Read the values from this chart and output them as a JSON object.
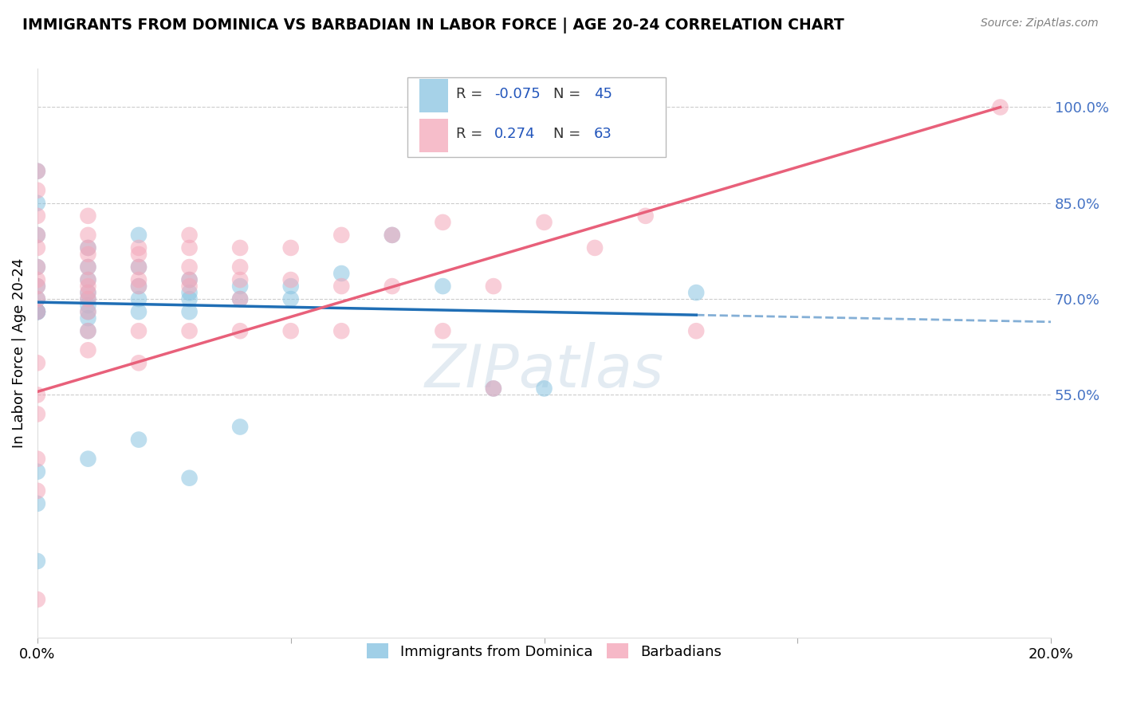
{
  "title": "IMMIGRANTS FROM DOMINICA VS BARBADIAN IN LABOR FORCE | AGE 20-24 CORRELATION CHART",
  "source": "Source: ZipAtlas.com",
  "ylabel": "In Labor Force | Age 20-24",
  "xlim": [
    0.0,
    0.2
  ],
  "ylim": [
    0.17,
    1.06
  ],
  "xticks": [
    0.0,
    0.05,
    0.1,
    0.15,
    0.2
  ],
  "xticklabels": [
    "0.0%",
    "",
    "",
    "",
    "20.0%"
  ],
  "right_yticks": [
    0.55,
    0.7,
    0.85,
    1.0
  ],
  "right_yticklabels": [
    "55.0%",
    "70.0%",
    "85.0%",
    "100.0%"
  ],
  "watermark": "ZIPatlas",
  "blue_R": -0.075,
  "blue_N": 45,
  "pink_R": 0.274,
  "pink_N": 63,
  "blue_color": "#89c4e1",
  "pink_color": "#f4a7b9",
  "blue_line_color": "#1f6eb5",
  "pink_line_color": "#e8607a",
  "legend_label_blue": "Immigrants from Dominica",
  "legend_label_pink": "Barbadians",
  "blue_x": [
    0.0,
    0.0,
    0.0,
    0.0,
    0.0,
    0.0,
    0.0,
    0.0,
    0.0,
    0.0,
    0.01,
    0.01,
    0.01,
    0.01,
    0.01,
    0.01,
    0.01,
    0.01,
    0.01,
    0.02,
    0.02,
    0.02,
    0.02,
    0.02,
    0.03,
    0.03,
    0.03,
    0.03,
    0.04,
    0.04,
    0.05,
    0.05,
    0.06,
    0.07,
    0.08,
    0.09,
    0.1,
    0.13,
    0.04,
    0.02,
    0.01,
    0.0,
    0.0,
    0.0,
    0.03
  ],
  "blue_y": [
    0.9,
    0.85,
    0.8,
    0.75,
    0.72,
    0.7,
    0.68,
    0.68,
    0.68,
    0.68,
    0.78,
    0.75,
    0.73,
    0.71,
    0.7,
    0.69,
    0.68,
    0.67,
    0.65,
    0.8,
    0.75,
    0.72,
    0.7,
    0.68,
    0.73,
    0.71,
    0.7,
    0.68,
    0.72,
    0.7,
    0.72,
    0.7,
    0.74,
    0.8,
    0.72,
    0.56,
    0.56,
    0.71,
    0.5,
    0.48,
    0.45,
    0.43,
    0.38,
    0.29,
    0.42
  ],
  "pink_x": [
    0.0,
    0.0,
    0.0,
    0.0,
    0.0,
    0.0,
    0.0,
    0.0,
    0.0,
    0.0,
    0.0,
    0.01,
    0.01,
    0.01,
    0.01,
    0.01,
    0.01,
    0.01,
    0.01,
    0.01,
    0.01,
    0.01,
    0.02,
    0.02,
    0.02,
    0.02,
    0.02,
    0.02,
    0.03,
    0.03,
    0.03,
    0.03,
    0.03,
    0.04,
    0.04,
    0.04,
    0.04,
    0.05,
    0.05,
    0.06,
    0.06,
    0.07,
    0.08,
    0.09,
    0.1,
    0.11,
    0.12,
    0.13,
    0.03,
    0.04,
    0.05,
    0.02,
    0.01,
    0.0,
    0.0,
    0.0,
    0.0,
    0.0,
    0.06,
    0.07,
    0.08,
    0.09,
    0.19
  ],
  "pink_y": [
    0.9,
    0.87,
    0.83,
    0.8,
    0.78,
    0.75,
    0.73,
    0.72,
    0.7,
    0.68,
    0.23,
    0.83,
    0.8,
    0.78,
    0.77,
    0.75,
    0.73,
    0.72,
    0.71,
    0.7,
    0.68,
    0.65,
    0.78,
    0.77,
    0.75,
    0.73,
    0.72,
    0.65,
    0.8,
    0.78,
    0.75,
    0.73,
    0.65,
    0.78,
    0.75,
    0.73,
    0.65,
    0.78,
    0.73,
    0.8,
    0.72,
    0.8,
    0.82,
    0.56,
    0.82,
    0.78,
    0.83,
    0.65,
    0.72,
    0.7,
    0.65,
    0.6,
    0.62,
    0.6,
    0.55,
    0.52,
    0.45,
    0.4,
    0.65,
    0.72,
    0.65,
    0.72,
    1.0
  ]
}
